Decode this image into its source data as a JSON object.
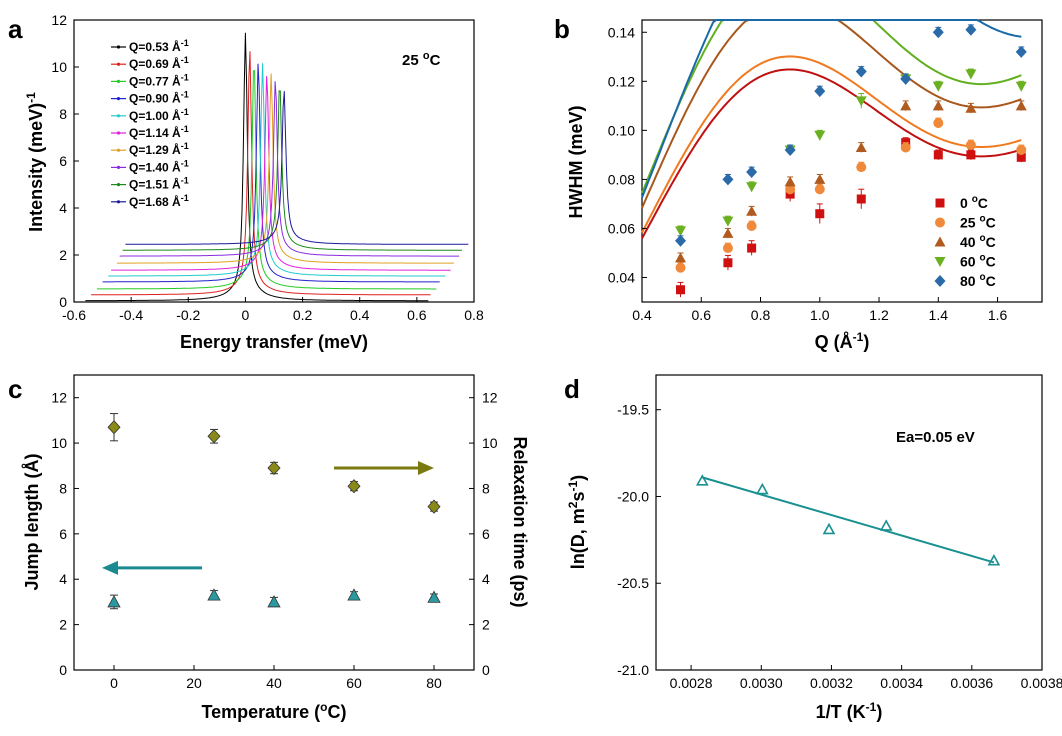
{
  "panels": {
    "a": "a",
    "b": "b",
    "c": "c",
    "d": "d"
  },
  "chart_data": [
    {
      "panel": "a",
      "type": "line",
      "xlabel": "Energy transfer (meV)",
      "ylabel": "Intensity (meV)",
      "ylabel_sup": "-1",
      "xlim": [
        -0.6,
        0.8
      ],
      "ylim": [
        0,
        12
      ],
      "xticks": [
        "-0.6",
        "-0.4",
        "-0.2",
        "0",
        "0.2",
        "0.4",
        "0.6",
        "0.8"
      ],
      "yticks": [
        "0",
        "2",
        "4",
        "6",
        "8",
        "10",
        "12"
      ],
      "annotation": {
        "text": "25 ",
        "sup": "o",
        "after": "C"
      },
      "peak_half_width_meV": 0.008,
      "series": [
        {
          "name": "Q=0.53",
          "unit": " Å",
          "unit_sup": "-1",
          "color": "#000000",
          "x_offset": 0.0,
          "baseline": 0.05,
          "peak": 11.0,
          "x_range": [
            -0.56,
            0.64
          ]
        },
        {
          "name": "Q=0.69",
          "unit": " Å",
          "unit_sup": "-1",
          "color": "#e02020",
          "x_offset": 0.015,
          "baseline": 0.3,
          "peak": 10.4,
          "x_range": [
            -0.54,
            0.65
          ]
        },
        {
          "name": "Q=0.77",
          "unit": " Å",
          "unit_sup": "-1",
          "color": "#22cc22",
          "x_offset": 0.03,
          "baseline": 0.55,
          "peak": 10.0,
          "x_range": [
            -0.52,
            0.67
          ]
        },
        {
          "name": "Q=0.90",
          "unit": " Å",
          "unit_sup": "-1",
          "color": "#2222cc",
          "x_offset": 0.045,
          "baseline": 0.85,
          "peak": 9.9,
          "x_range": [
            -0.5,
            0.68
          ]
        },
        {
          "name": "Q=1.00",
          "unit": " Å",
          "unit_sup": "-1",
          "color": "#22cccc",
          "x_offset": 0.06,
          "baseline": 1.1,
          "peak": 9.8,
          "x_range": [
            -0.48,
            0.7
          ]
        },
        {
          "name": "Q=1.14",
          "unit": " Å",
          "unit_sup": "-1",
          "color": "#e020e0",
          "x_offset": 0.075,
          "baseline": 1.35,
          "peak": 9.4,
          "x_range": [
            -0.47,
            0.72
          ]
        },
        {
          "name": "Q=1.29",
          "unit": " Å",
          "unit_sup": "-1",
          "color": "#e0a020",
          "x_offset": 0.09,
          "baseline": 1.65,
          "peak": 9.4,
          "x_range": [
            -0.45,
            0.73
          ]
        },
        {
          "name": "Q=1.40",
          "unit": " Å",
          "unit_sup": "-1",
          "color": "#8a2be2",
          "x_offset": 0.105,
          "baseline": 1.95,
          "peak": 9.2,
          "x_range": [
            -0.44,
            0.75
          ]
        },
        {
          "name": "Q=1.51",
          "unit": " Å",
          "unit_sup": "-1",
          "color": "#1a8a1a",
          "x_offset": 0.12,
          "baseline": 2.2,
          "peak": 9.1,
          "x_range": [
            -0.43,
            0.76
          ]
        },
        {
          "name": "Q=1.68",
          "unit": " Å",
          "unit_sup": "-1",
          "color": "#1a1a9a",
          "x_offset": 0.135,
          "baseline": 2.45,
          "peak": 8.8,
          "x_range": [
            -0.42,
            0.78
          ]
        }
      ]
    },
    {
      "panel": "b",
      "type": "scatter",
      "xlabel": "Q (Å",
      "xlabel_sup": "-1",
      "xlabel_after": ")",
      "ylabel": "HWHM (meV)",
      "xlim": [
        0.4,
        1.75
      ],
      "ylim": [
        0.03,
        0.145
      ],
      "xticks": [
        "0.4",
        "0.6",
        "0.8",
        "1.0",
        "1.2",
        "1.4",
        "1.6"
      ],
      "yticks": [
        "0.04",
        "0.06",
        "0.08",
        "0.10",
        "0.12",
        "0.14"
      ],
      "x": [
        0.53,
        0.69,
        0.77,
        0.9,
        1.0,
        1.14,
        1.29,
        1.4,
        1.51,
        1.68
      ],
      "series": [
        {
          "name": "0 ",
          "sup": "o",
          "after": "C",
          "color": "#d01010",
          "marker": "square",
          "values": [
            0.035,
            0.046,
            0.052,
            0.074,
            0.066,
            0.072,
            0.095,
            0.09,
            0.09,
            0.089
          ],
          "errors": [
            0.003,
            0.003,
            0.003,
            0.003,
            0.004,
            0.004,
            0.002,
            0.002,
            0.002,
            0.002
          ],
          "fit": {
            "dinf": 0.094,
            "l2": 5.0
          }
        },
        {
          "name": "25 ",
          "sup": "o",
          "after": "C",
          "color": "#f08a3a",
          "marker": "circle",
          "values": [
            0.044,
            0.052,
            0.061,
            0.076,
            0.076,
            0.085,
            0.093,
            0.103,
            0.094,
            0.092
          ],
          "errors": [
            0.002,
            0.002,
            0.002,
            0.002,
            0.002,
            0.002,
            0.002,
            0.002,
            0.002,
            0.002
          ],
          "fit": {
            "dinf": 0.098,
            "l2": 5.0
          }
        },
        {
          "name": "40 ",
          "sup": "o",
          "after": "C",
          "color": "#b05a20",
          "marker": "triangle-up",
          "values": [
            0.048,
            0.058,
            0.067,
            0.079,
            0.08,
            0.093,
            0.11,
            0.11,
            0.109,
            0.11
          ],
          "errors": [
            0.002,
            0.002,
            0.002,
            0.002,
            0.002,
            0.002,
            0.002,
            0.002,
            0.002,
            0.002
          ],
          "fit": {
            "dinf": 0.115,
            "l2": 5.0
          }
        },
        {
          "name": "60 ",
          "sup": "o",
          "after": "C",
          "color": "#6ab020",
          "marker": "triangle-down",
          "values": [
            0.059,
            0.063,
            0.077,
            0.092,
            0.098,
            0.112,
            0.121,
            0.118,
            0.123,
            0.118
          ],
          "errors": [
            0.002,
            0.002,
            0.002,
            0.002,
            0.002,
            0.003,
            0.002,
            0.002,
            0.002,
            0.002
          ],
          "fit": {
            "dinf": 0.125,
            "l2": 5.0
          }
        },
        {
          "name": "80 ",
          "sup": "o",
          "after": "C",
          "color": "#2a6aa8",
          "marker": "diamond",
          "values": [
            0.055,
            0.08,
            0.083,
            0.092,
            0.116,
            0.124,
            0.121,
            0.14,
            0.141,
            0.132
          ],
          "errors": [
            0.002,
            0.002,
            0.002,
            0.002,
            0.002,
            0.002,
            0.002,
            0.002,
            0.002,
            0.002
          ],
          "fit": {
            "dinf": 0.141,
            "l2": 4.5
          }
        }
      ],
      "fit_color": [
        "#c01010",
        "#f07a20",
        "#a8581c",
        "#60b020",
        "#1a6aa8"
      ]
    },
    {
      "panel": "c",
      "type": "scatter",
      "xlabel": "Temperature (",
      "xlabel_sup": "o",
      "xlabel_after": "C)",
      "ylabel_left": "Jump length (Å)",
      "ylabel_right": "Relaxation time (ps)",
      "xlim": [
        -10,
        90
      ],
      "ylim": [
        0,
        13
      ],
      "ylim_right": [
        0,
        13
      ],
      "xticks": [
        "0",
        "20",
        "40",
        "60",
        "80"
      ],
      "yticks": [
        "0",
        "2",
        "4",
        "6",
        "8",
        "10",
        "12"
      ],
      "yticks_right": [
        "0",
        "2",
        "4",
        "6",
        "8",
        "10",
        "12"
      ],
      "x": [
        0,
        25,
        40,
        60,
        80
      ],
      "series": [
        {
          "name": "Relaxation time",
          "axis": "right",
          "color": "#8a8a1a",
          "marker": "diamond",
          "values": [
            10.7,
            10.3,
            8.9,
            8.1,
            7.2
          ],
          "errors": [
            0.6,
            0.3,
            0.25,
            0.2,
            0.2
          ]
        },
        {
          "name": "Jump length",
          "axis": "left",
          "color": "#2a9aa0",
          "marker": "triangle-up",
          "values": [
            3.0,
            3.3,
            3.0,
            3.3,
            3.2
          ],
          "errors": [
            0.3,
            0.2,
            0.2,
            0.15,
            0.15
          ]
        }
      ],
      "arrows": [
        {
          "name": "left-arrow",
          "color": "#1a8a90",
          "from": [
            22,
            4.5
          ],
          "to": [
            -3,
            4.5
          ]
        },
        {
          "name": "right-arrow",
          "color": "#7a7a10",
          "from": [
            55,
            8.9
          ],
          "to": [
            80,
            8.9
          ]
        }
      ]
    },
    {
      "panel": "d",
      "type": "scatter",
      "xlabel": "1/T (K",
      "xlabel_sup": "-1",
      "xlabel_after": ")",
      "ylabel": "ln(D, m",
      "ylabel_sup1": "2",
      "ylabel_mid": "s",
      "ylabel_sup2": "-1",
      "ylabel_after": ")",
      "xlim": [
        0.0027,
        0.0038
      ],
      "ylim": [
        -21.0,
        -19.3
      ],
      "xticks": [
        "0.0028",
        "0.0030",
        "0.0032",
        "0.0034",
        "0.0036",
        "0.0038"
      ],
      "yticks": [
        "-21.0",
        "-20.5",
        "-20.0",
        "-19.5"
      ],
      "annotation": "Ea=0.05 eV",
      "color": "#1a9090",
      "x": [
        0.002832,
        0.003003,
        0.003193,
        0.003356,
        0.003663
      ],
      "y": [
        -19.91,
        -19.96,
        -20.19,
        -20.17,
        -20.37
      ],
      "fit": {
        "x": [
          0.002832,
          0.003663
        ],
        "y": [
          -19.89,
          -20.38
        ]
      }
    }
  ]
}
